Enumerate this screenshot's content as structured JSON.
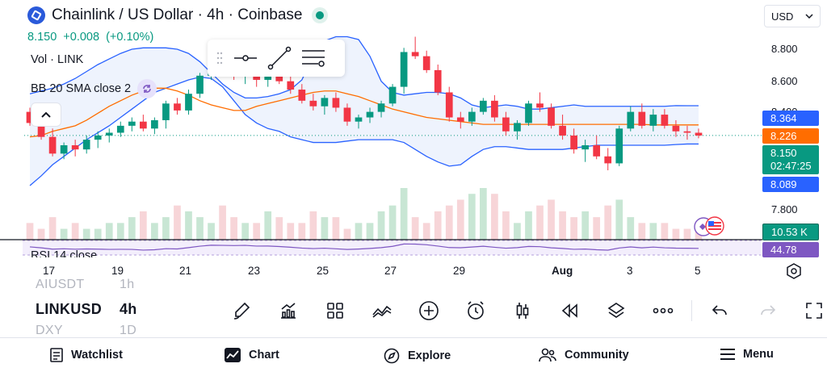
{
  "header": {
    "title": "Chainlink / US Dollar · 4h · Coinbase",
    "last_price": "8.150",
    "change": "+0.008",
    "change_pct": "(+0.10%)",
    "volume_label": "Vol · LINK",
    "indicator_label": "BB 20 SMA close 2",
    "rsi_label": "RSI 14 close"
  },
  "currency": {
    "label": "USD"
  },
  "price_scale": {
    "ticks": [
      "8.800",
      "8.600",
      "8.400",
      "7.800"
    ],
    "upper_band": "8.364",
    "basis": "8.226",
    "last": "8.150",
    "countdown": "02:47:25",
    "lower_band": "8.089",
    "volume": "10.53 K",
    "rsi": "44.78"
  },
  "colors": {
    "up": "#089981",
    "down": "#f23645",
    "band": "#2962ff",
    "basis": "#ff6d00",
    "band_fill": "#eef3fd",
    "rsi": "#7e57c2",
    "vol_up": "#c8e6d4",
    "vol_down": "#f7d5d8"
  },
  "date_axis": [
    "17",
    "19",
    "21",
    "23",
    "25",
    "27",
    "29",
    "Aug",
    "3",
    "5"
  ],
  "symbols": {
    "prev": "AIUSDT",
    "current": "LINKUSD",
    "next": "DXY",
    "prev_tf": "1h",
    "current_tf": "4h",
    "next_tf": "1D"
  },
  "toolbar_icons": [
    "brush-icon",
    "indicators-icon",
    "templates-icon",
    "compare-icon",
    "add-icon",
    "alert-icon",
    "candles-icon",
    "replay-icon",
    "layers-icon",
    "more-icon",
    "undo-icon",
    "redo-icon",
    "fullscreen-icon"
  ],
  "nav": {
    "watchlist": "Watchlist",
    "chart": "Chart",
    "explore": "Explore",
    "community": "Community",
    "menu": "Menu"
  },
  "chart_data": {
    "type": "candlestick",
    "x_ticks": [
      "17",
      "19",
      "21",
      "23",
      "25",
      "27",
      "29",
      "Aug",
      "3",
      "5"
    ],
    "y_ticks": [
      8.8,
      8.6,
      8.4,
      7.8
    ],
    "ylim": [
      7.5,
      8.95
    ],
    "ohlc": [
      [
        8.32,
        8.35,
        8.22,
        8.24
      ],
      [
        8.24,
        8.28,
        8.12,
        8.14
      ],
      [
        8.14,
        8.2,
        8.0,
        8.02
      ],
      [
        8.02,
        8.1,
        7.98,
        8.08
      ],
      [
        8.08,
        8.12,
        8.0,
        8.05
      ],
      [
        8.05,
        8.15,
        8.02,
        8.12
      ],
      [
        8.12,
        8.18,
        8.06,
        8.15
      ],
      [
        8.15,
        8.2,
        8.1,
        8.17
      ],
      [
        8.17,
        8.25,
        8.14,
        8.22
      ],
      [
        8.22,
        8.28,
        8.18,
        8.25
      ],
      [
        8.25,
        8.3,
        8.18,
        8.2
      ],
      [
        8.2,
        8.28,
        8.16,
        8.26
      ],
      [
        8.26,
        8.4,
        8.2,
        8.38
      ],
      [
        8.38,
        8.42,
        8.3,
        8.33
      ],
      [
        8.33,
        8.48,
        8.3,
        8.45
      ],
      [
        8.45,
        8.6,
        8.42,
        8.58
      ],
      [
        8.58,
        8.7,
        8.55,
        8.66
      ],
      [
        8.66,
        8.72,
        8.6,
        8.62
      ],
      [
        8.62,
        8.68,
        8.55,
        8.58
      ],
      [
        8.58,
        8.64,
        8.52,
        8.6
      ],
      [
        8.6,
        8.66,
        8.5,
        8.55
      ],
      [
        8.55,
        8.62,
        8.5,
        8.58
      ],
      [
        8.58,
        8.65,
        8.52,
        8.54
      ],
      [
        8.54,
        8.6,
        8.45,
        8.48
      ],
      [
        8.48,
        8.52,
        8.38,
        8.4
      ],
      [
        8.4,
        8.45,
        8.33,
        8.36
      ],
      [
        8.36,
        8.44,
        8.3,
        8.42
      ],
      [
        8.42,
        8.46,
        8.32,
        8.35
      ],
      [
        8.35,
        8.38,
        8.22,
        8.25
      ],
      [
        8.25,
        8.3,
        8.2,
        8.28
      ],
      [
        8.28,
        8.35,
        8.24,
        8.32
      ],
      [
        8.32,
        8.4,
        8.28,
        8.38
      ],
      [
        8.38,
        8.52,
        8.36,
        8.5
      ],
      [
        8.5,
        8.78,
        8.45,
        8.75
      ],
      [
        8.75,
        8.86,
        8.7,
        8.72
      ],
      [
        8.72,
        8.76,
        8.6,
        8.62
      ],
      [
        8.62,
        8.66,
        8.44,
        8.46
      ],
      [
        8.46,
        8.5,
        8.25,
        8.28
      ],
      [
        8.28,
        8.32,
        8.2,
        8.25
      ],
      [
        8.25,
        8.35,
        8.22,
        8.32
      ],
      [
        8.32,
        8.42,
        8.3,
        8.4
      ],
      [
        8.4,
        8.44,
        8.25,
        8.28
      ],
      [
        8.28,
        8.32,
        8.15,
        8.18
      ],
      [
        8.18,
        8.26,
        8.12,
        8.24
      ],
      [
        8.24,
        8.4,
        8.22,
        8.38
      ],
      [
        8.38,
        8.46,
        8.32,
        8.35
      ],
      [
        8.35,
        8.38,
        8.2,
        8.22
      ],
      [
        8.22,
        8.3,
        8.12,
        8.15
      ],
      [
        8.15,
        8.2,
        8.02,
        8.05
      ],
      [
        8.05,
        8.12,
        7.96,
        8.08
      ],
      [
        8.08,
        8.15,
        7.98,
        8.0
      ],
      [
        8.0,
        8.06,
        7.9,
        7.95
      ],
      [
        7.95,
        8.22,
        7.93,
        8.2
      ],
      [
        8.2,
        8.36,
        8.18,
        8.32
      ],
      [
        8.32,
        8.38,
        8.2,
        8.22
      ],
      [
        8.22,
        8.34,
        8.18,
        8.3
      ],
      [
        8.3,
        8.34,
        8.2,
        8.22
      ],
      [
        8.22,
        8.26,
        8.14,
        8.18
      ],
      [
        8.18,
        8.22,
        8.12,
        8.17
      ],
      [
        8.17,
        8.2,
        8.13,
        8.15
      ]
    ],
    "bb_upper": [
      8.45,
      8.47,
      8.49,
      8.52,
      8.56,
      8.61,
      8.66,
      8.7,
      8.74,
      8.77,
      8.78,
      8.78,
      8.78,
      8.77,
      8.74,
      8.68,
      8.6,
      8.52,
      8.46,
      8.42,
      8.42,
      8.43,
      8.45,
      8.48,
      8.55,
      8.72,
      8.83,
      8.86,
      8.86,
      8.84,
      8.72,
      8.54,
      8.46,
      8.44,
      8.45,
      8.46,
      8.46,
      8.45,
      8.42,
      8.37,
      8.35,
      8.36,
      8.37,
      8.36,
      8.34,
      8.34,
      8.35,
      8.36,
      8.37,
      8.36,
      8.36,
      8.36,
      8.36,
      8.36,
      8.36,
      8.36,
      8.36,
      8.365,
      8.364,
      8.364
    ],
    "bb_basis": [
      8.14,
      8.15,
      8.18,
      8.2,
      8.22,
      8.26,
      8.31,
      8.36,
      8.4,
      8.44,
      8.47,
      8.49,
      8.49,
      8.47,
      8.44,
      8.4,
      8.37,
      8.35,
      8.33,
      8.33,
      8.36,
      8.38,
      8.4,
      8.42,
      8.44,
      8.46,
      8.47,
      8.47,
      8.45,
      8.43,
      8.4,
      8.37,
      8.34,
      8.32,
      8.3,
      8.28,
      8.27,
      8.26,
      8.25,
      8.24,
      8.23,
      8.23,
      8.23,
      8.23,
      8.23,
      8.23,
      8.23,
      8.23,
      8.23,
      8.23,
      8.23,
      8.23,
      8.23,
      8.23,
      8.23,
      8.226,
      8.226,
      8.226,
      8.226,
      8.226
    ],
    "bb_lower": [
      7.79,
      7.86,
      7.94,
      8.0,
      8.06,
      8.12,
      8.17,
      8.22,
      8.28,
      8.34,
      8.4,
      8.46,
      8.49,
      8.52,
      8.55,
      8.57,
      8.56,
      8.5,
      8.4,
      8.3,
      8.24,
      8.2,
      8.18,
      8.14,
      8.12,
      8.1,
      8.1,
      8.1,
      8.11,
      8.12,
      8.12,
      8.12,
      8.12,
      8.1,
      8.05,
      8.0,
      7.96,
      7.93,
      7.94,
      8.0,
      8.05,
      8.07,
      8.07,
      8.06,
      8.05,
      8.05,
      8.05,
      8.05,
      8.06,
      8.07,
      8.08,
      8.08,
      8.08,
      8.08,
      8.08,
      8.08,
      8.08,
      8.085,
      8.089,
      8.089
    ],
    "volume": [
      3,
      2,
      4,
      2,
      3,
      2,
      2,
      3,
      3,
      4,
      5,
      3,
      4,
      6,
      5,
      4,
      3,
      6,
      4,
      3,
      3,
      5,
      4,
      3,
      3,
      5,
      4,
      4,
      2,
      3,
      3,
      5,
      6,
      9,
      4,
      3,
      5,
      6,
      7,
      8,
      9,
      8,
      5,
      3,
      5,
      6,
      7,
      5,
      4,
      5,
      4,
      6,
      7,
      4,
      3,
      3,
      3,
      2,
      2,
      2
    ],
    "rsi_last": 44.78
  }
}
